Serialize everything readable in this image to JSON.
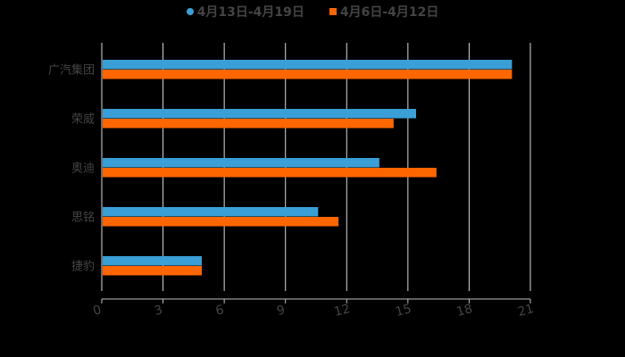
{
  "chart_data": {
    "type": "bar",
    "orientation": "horizontal",
    "title": "",
    "xlabel": "",
    "ylabel": "",
    "categories": [
      "广汽集团",
      "荣威",
      "奥迪",
      "思铭",
      "捷豹"
    ],
    "series": [
      {
        "name": "4月13日-4月19日",
        "color": "#3a9fd6",
        "values": [
          20.1,
          15.4,
          13.6,
          10.6,
          4.9
        ]
      },
      {
        "name": "4月6日-4月12日",
        "color": "#ff6600",
        "values": [
          20.1,
          14.3,
          16.4,
          11.6,
          4.9
        ]
      }
    ],
    "xlim": [
      0,
      21
    ],
    "xticks": [
      0,
      3,
      6,
      9,
      12,
      15,
      18,
      21
    ],
    "grid": true,
    "legend_position": "top"
  },
  "legend": {
    "items": [
      {
        "label": "4月13日-4月19日",
        "color": "#3a9fd6",
        "marker": "circle"
      },
      {
        "label": "4月6日-4月12日",
        "color": "#ff6600",
        "marker": "square"
      }
    ]
  }
}
